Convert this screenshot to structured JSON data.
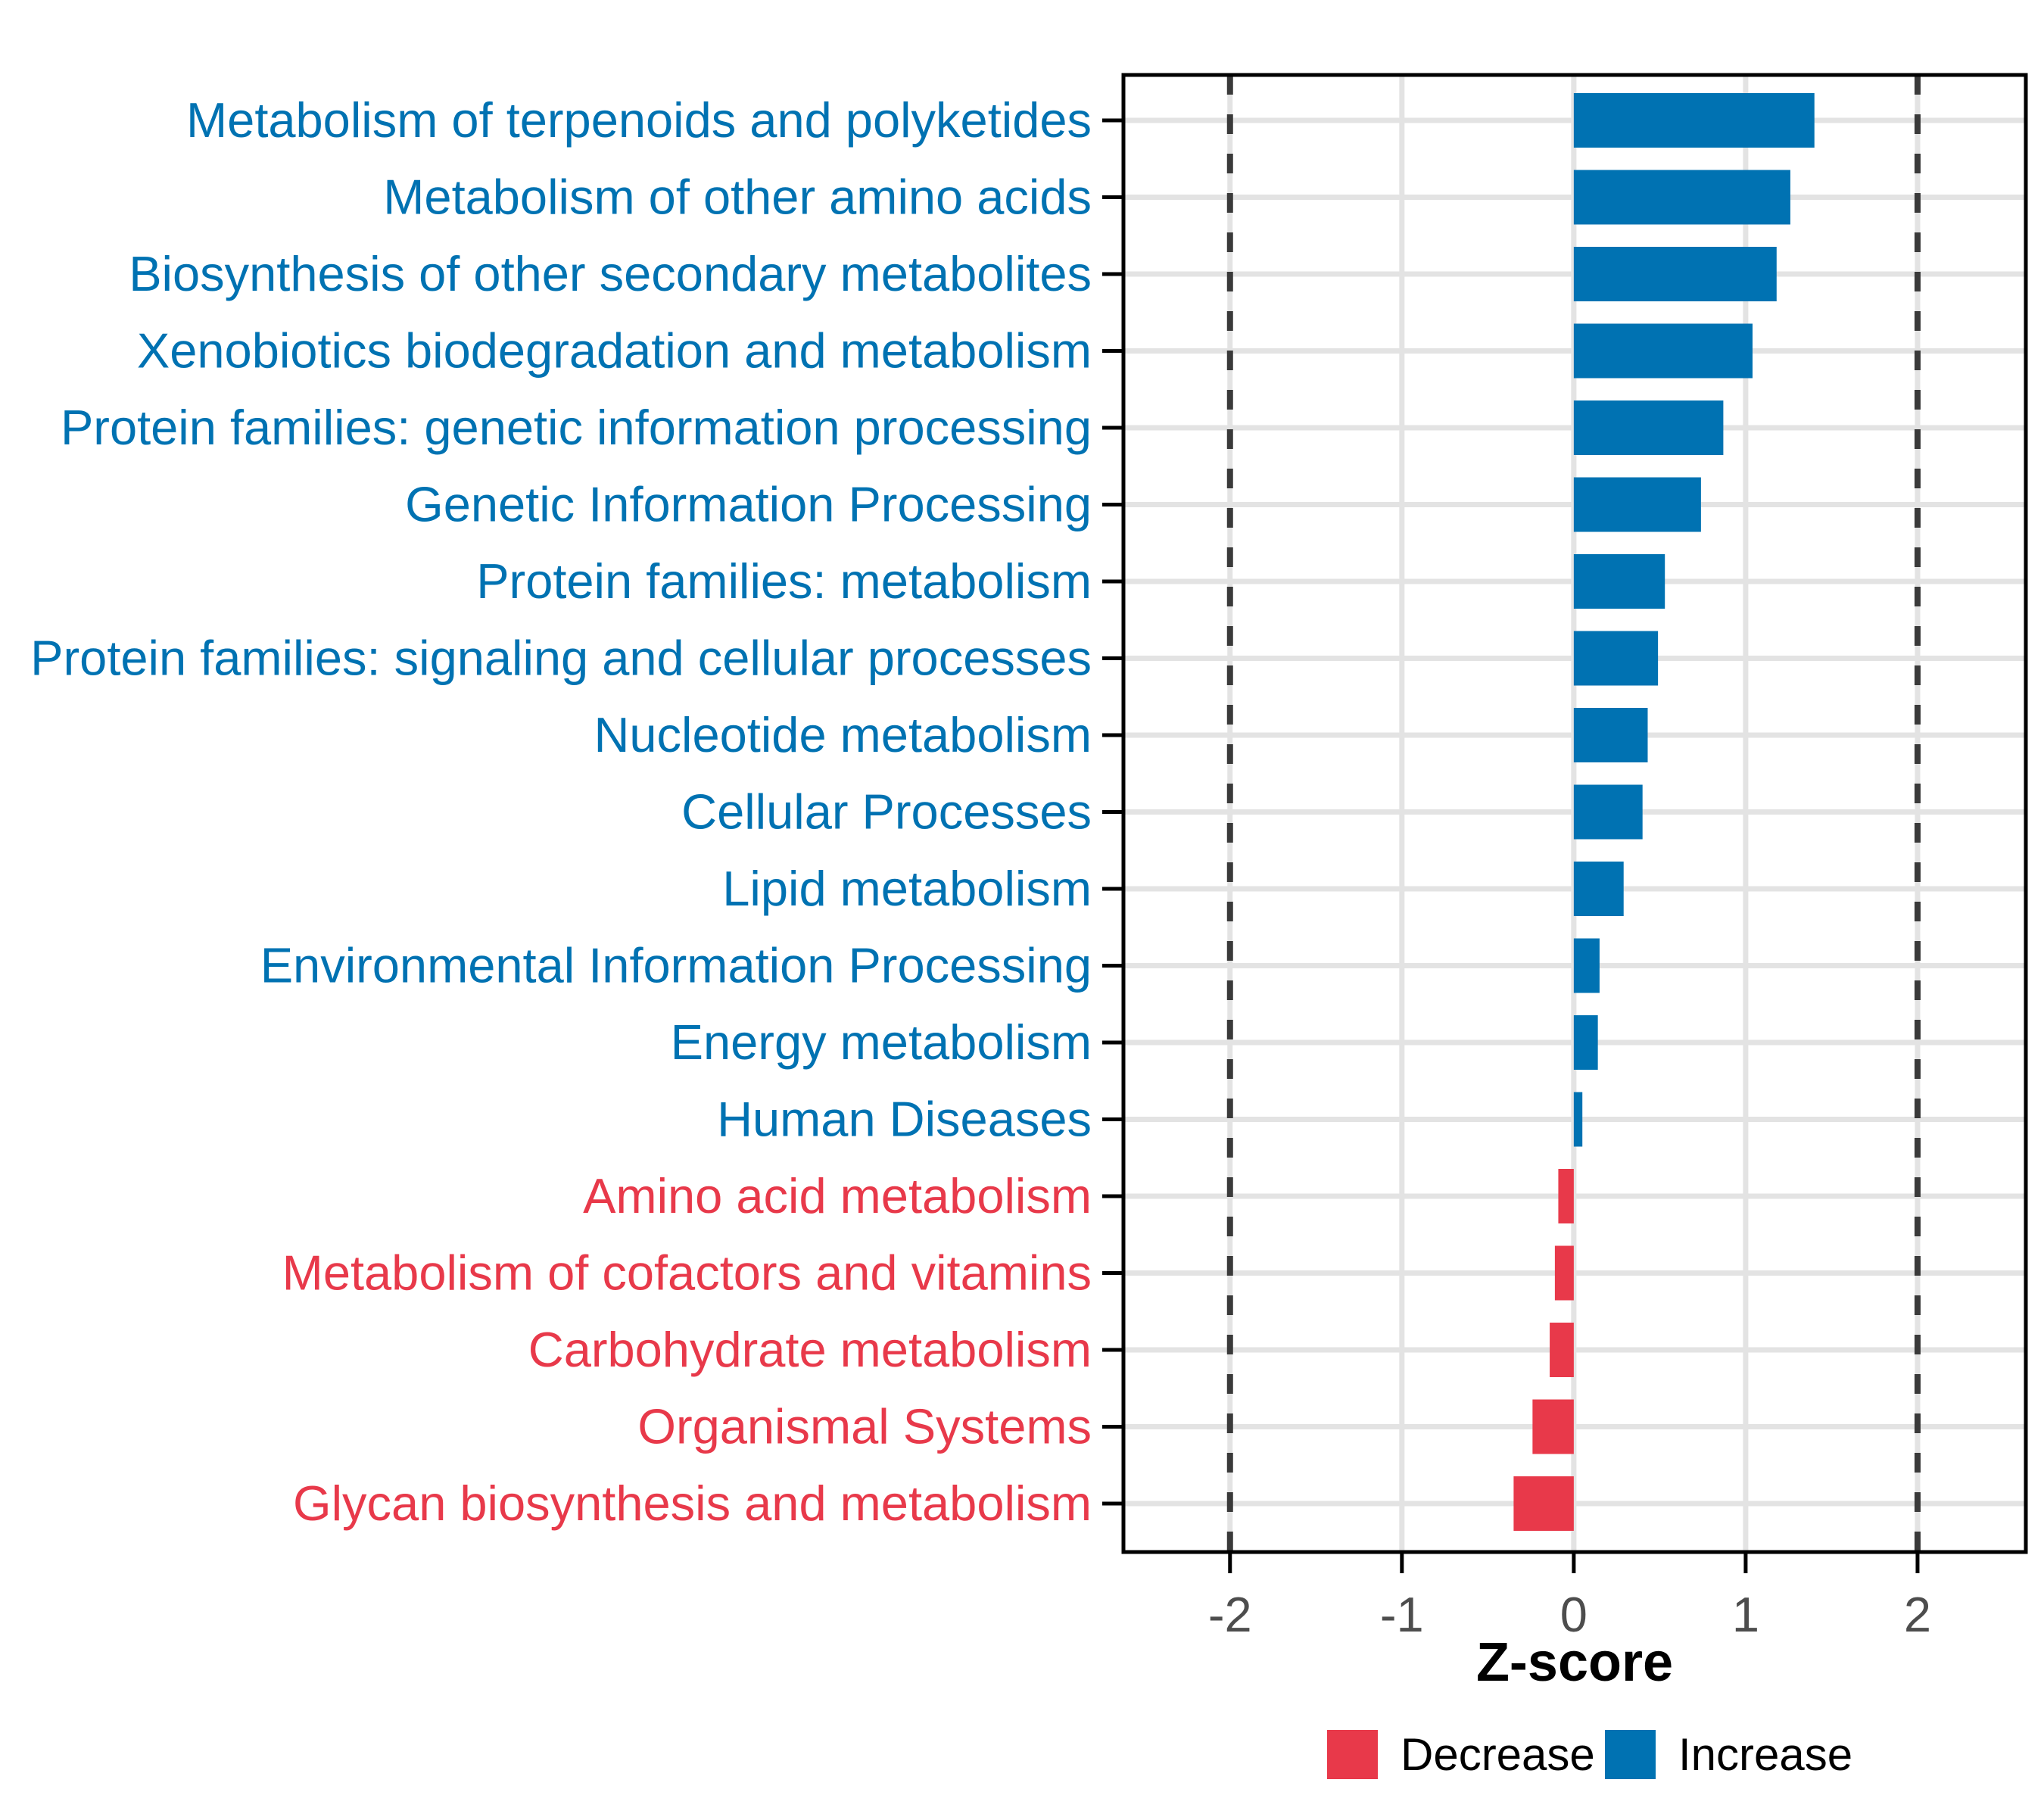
{
  "chart_data": {
    "type": "bar",
    "orientation": "horizontal",
    "title": "",
    "xlabel": "Z-score",
    "ylabel": "",
    "xlim": [
      -2.62,
      2.63
    ],
    "x_ticks": [
      -2,
      -1,
      0,
      1,
      2
    ],
    "x_tick_labels": [
      "-2",
      "-1",
      "0",
      "1",
      "2"
    ],
    "reference_lines": [
      -2,
      2
    ],
    "grid": true,
    "legend_position": "bottom",
    "categories": [
      "Metabolism of terpenoids and polyketides",
      "Metabolism of other amino acids",
      "Biosynthesis of other secondary metabolites",
      "Xenobiotics biodegradation and metabolism",
      "Protein families: genetic information processing",
      "Genetic Information Processing",
      "Protein families: metabolism",
      "Protein families: signaling and cellular processes",
      "Nucleotide metabolism",
      "Cellular Processes",
      "Lipid metabolism",
      "Environmental Information Processing",
      "Energy metabolism",
      "Human Diseases",
      "Amino acid metabolism",
      "Metabolism of cofactors and vitamins",
      "Carbohydrate metabolism",
      "Organismal Systems",
      "Glycan biosynthesis and metabolism"
    ],
    "values": [
      1.4,
      1.26,
      1.18,
      1.04,
      0.87,
      0.74,
      0.53,
      0.49,
      0.43,
      0.4,
      0.29,
      0.15,
      0.14,
      0.05,
      -0.09,
      -0.11,
      -0.14,
      -0.24,
      -0.35
    ],
    "groups": [
      "Increase",
      "Increase",
      "Increase",
      "Increase",
      "Increase",
      "Increase",
      "Increase",
      "Increase",
      "Increase",
      "Increase",
      "Increase",
      "Increase",
      "Increase",
      "Increase",
      "Decrease",
      "Decrease",
      "Decrease",
      "Decrease",
      "Decrease"
    ],
    "group_colors": {
      "Increase": "#0072B2",
      "Decrease": "#E8394A"
    }
  },
  "legend": {
    "items": [
      {
        "label": "Decrease",
        "color": "#E8394A"
      },
      {
        "label": "Increase",
        "color": "#0072B2"
      }
    ]
  },
  "colors": {
    "panel_border": "#000000",
    "gridline": "#E3E3E3",
    "reference_line": "#3A3A3A",
    "tick_mark": "#000000",
    "x_tick_label": "#4D4D4D",
    "axis_title": "#000000",
    "legend_text": "#000000",
    "background": "#FFFFFF"
  }
}
